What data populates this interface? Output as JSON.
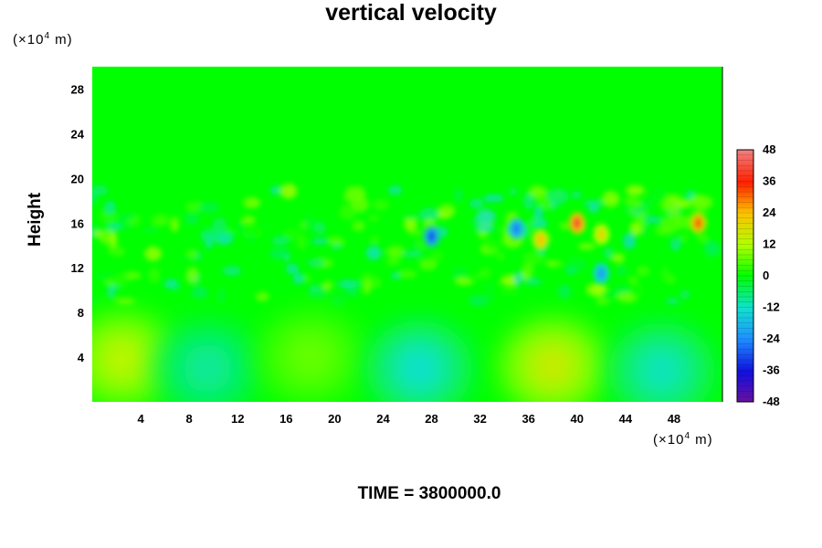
{
  "chart_data": {
    "type": "heatmap",
    "title": "vertical velocity",
    "xlabel": "",
    "ylabel": "Height",
    "x_unit": "(×10⁴ m)",
    "y_unit": "(×10⁴ m)",
    "xlim": [
      0,
      52
    ],
    "ylim": [
      0,
      30
    ],
    "x_ticks": [
      4,
      8,
      12,
      16,
      20,
      24,
      28,
      32,
      36,
      40,
      44,
      48
    ],
    "y_ticks": [
      4,
      8,
      12,
      16,
      20,
      24,
      28
    ],
    "colorbar": {
      "range": [
        -48,
        48
      ],
      "ticks": [
        48,
        36,
        24,
        12,
        0,
        -12,
        -24,
        -36,
        -48
      ]
    },
    "background_value": 0,
    "features": [
      {
        "x": 2.5,
        "y": 3.8,
        "value": 14
      },
      {
        "x": 9.5,
        "y": 3.0,
        "value": -9
      },
      {
        "x": 18,
        "y": 4.0,
        "value": 7
      },
      {
        "x": 27,
        "y": 3.0,
        "value": -12
      },
      {
        "x": 38,
        "y": 3.2,
        "value": 16
      },
      {
        "x": 47,
        "y": 2.8,
        "value": -11
      },
      {
        "x": 28,
        "y": 14.8,
        "value": -30
      },
      {
        "x": 35,
        "y": 15.5,
        "value": -26
      },
      {
        "x": 37,
        "y": 14.5,
        "value": 24
      },
      {
        "x": 40,
        "y": 16.0,
        "value": 40
      },
      {
        "x": 42,
        "y": 15.0,
        "value": 20
      },
      {
        "x": 42,
        "y": 11.5,
        "value": -22
      },
      {
        "x": 50,
        "y": 16.0,
        "value": 32
      }
    ],
    "time_label": "TIME = 3800000.0"
  }
}
